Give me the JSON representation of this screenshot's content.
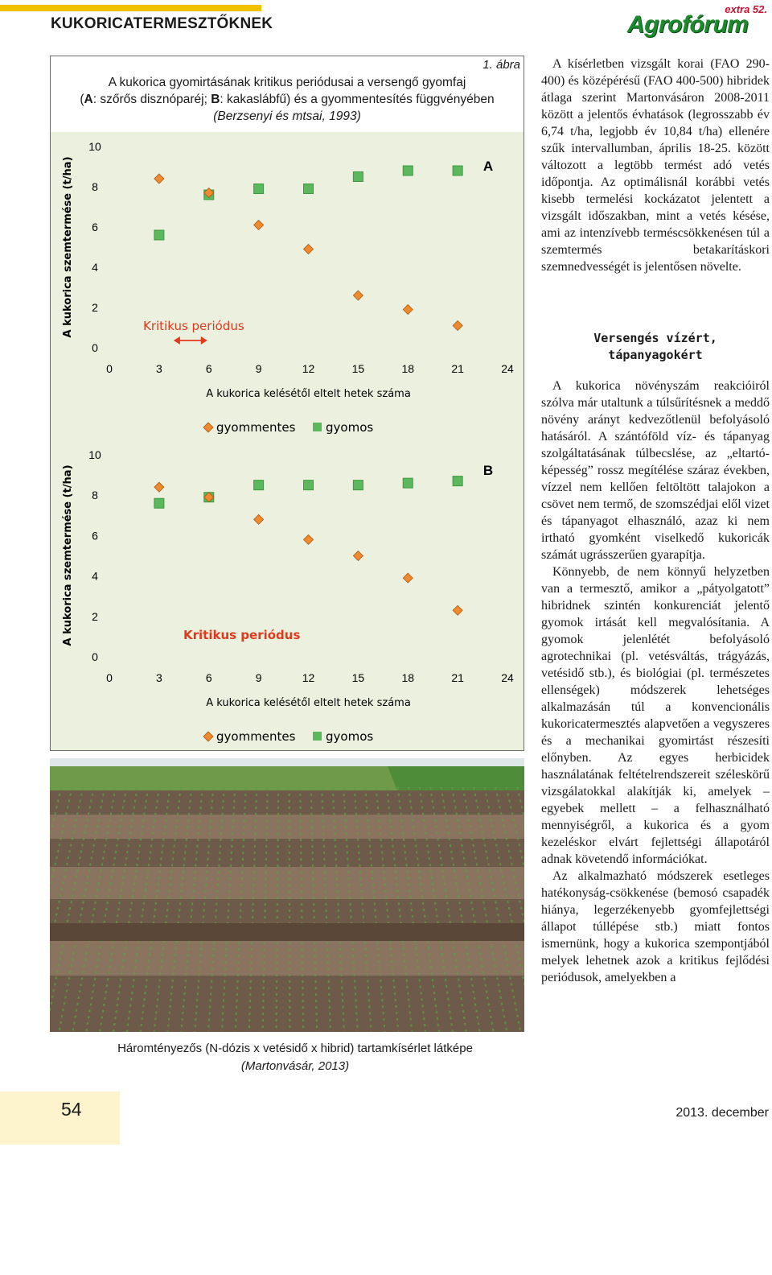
{
  "header": {
    "section_title": "KUKORICATERMESZTŐKNEK",
    "logo_extra": "extra 52.",
    "logo_name": "Agrofórum"
  },
  "figure": {
    "label": "1. ábra",
    "title_line1": "A kukorica gyomirtásának kritikus periódusai a versengő gyomfaj",
    "title_line2_a": "A",
    "title_line2_b": ": szőrős disznóparéj; ",
    "title_line2_c": "B",
    "title_line2_d": ": kakaslábfű) és a gyommentesítés függvényében",
    "title_line3": "(Berzsenyi és mtsai, 1993)",
    "title_paren_open": "(",
    "colors": {
      "gyommentes": "#f08a2e",
      "gyomos": "#5cb85c",
      "line_orange": "#e8842c",
      "line_green": "#2e8b3a",
      "critical": "#e03a1e"
    }
  },
  "chart_data": [
    {
      "type": "scatter",
      "panel_label": "A",
      "ylabel": "A kukorica szemtermése (t/ha)",
      "xlabel": "A kukorica kelésétől eltelt hetek száma",
      "xlim": [
        0,
        24
      ],
      "ylim": [
        0,
        10
      ],
      "x_ticks": [
        "0",
        "3",
        "6",
        "9",
        "12",
        "15",
        "18",
        "21",
        "24"
      ],
      "y_ticks": [
        "0",
        "2",
        "4",
        "6",
        "8",
        "10"
      ],
      "critical_label": "Kritikus periódus",
      "critical_range": [
        3,
        6
      ],
      "legend": [
        "gyommentes",
        "gyomos"
      ],
      "series": [
        {
          "name": "gyommentes",
          "x": [
            3,
            6,
            9,
            12,
            15,
            18,
            21
          ],
          "y": [
            8.4,
            7.7,
            6.1,
            4.9,
            2.6,
            1.9,
            1.1
          ]
        },
        {
          "name": "gyomos",
          "x": [
            3,
            6,
            9,
            12,
            15,
            18,
            21
          ],
          "y": [
            5.6,
            7.6,
            7.9,
            7.9,
            8.5,
            8.8,
            8.8
          ]
        }
      ]
    },
    {
      "type": "scatter",
      "panel_label": "B",
      "ylabel": "A kukorica szemtermése (t/ha)",
      "xlabel": "A kukorica kelésétől eltelt hetek száma",
      "xlim": [
        0,
        24
      ],
      "ylim": [
        0,
        10
      ],
      "x_ticks": [
        "0",
        "3",
        "6",
        "9",
        "12",
        "15",
        "18",
        "21",
        "24"
      ],
      "y_ticks": [
        "0",
        "2",
        "4",
        "6",
        "8",
        "10"
      ],
      "critical_label": "Kritikus periódus",
      "legend": [
        "gyommentes",
        "gyomos"
      ],
      "series": [
        {
          "name": "gyommentes",
          "x": [
            3,
            6,
            9,
            12,
            15,
            18,
            21
          ],
          "y": [
            8.4,
            7.9,
            6.8,
            5.8,
            5.0,
            3.9,
            2.3
          ]
        },
        {
          "name": "gyomos",
          "x": [
            3,
            6,
            9,
            12,
            15,
            18,
            21
          ],
          "y": [
            7.6,
            7.9,
            8.5,
            8.5,
            8.5,
            8.6,
            8.7
          ]
        }
      ]
    }
  ],
  "photo": {
    "caption_line1": "Háromtényezős (N-dózis x vetésidő x hibrid) tartamkísérlet látképe",
    "caption_line2": "(Martonvásár, 2013)",
    "colors": {
      "soil": "#6e5a48",
      "soil_light": "#8a7460",
      "grass": "#4e8c3a",
      "sky": "#dfe8e8"
    }
  },
  "text": {
    "p1": "A kísérletben vizsgált korai (FAO 290-400) és középérésű (FAO 400-500) hibridek átlaga szerint Martonvásáron 2008-2011 között a jelentős évhatások (legrosszabb év 6,74 t/ha, legjobb év 10,84 t/ha) ellenére szűk intervallumban, április 18-25. között változott a legtöbb termést adó vetés időpontja. Az optimálisnál korábbi vetés kisebb termelési kockázatot jelentett a vizsgált időszakban, mint a vetés késése, ami az intenzívebb terméscsökkenésen túl a szemtermés betakarításkori szemnedvességét is jelentősen növelte.",
    "subhead_line1": "Versengés vízért,",
    "subhead_line2": "tápanyagokért",
    "p2": "A kukorica növényszám reakcióiról szólva már utaltunk a túlsűrítésnek a meddő növény arányt kedvezőtlenül befolyásoló hatásáról. A szántóföld víz- és tápanyag szolgáltatásának túlbecslése, az „eltartó-képesség” rossz megítélése száraz években, vízzel nem kellően feltöltött talajokon a csövet nem termő, de szomszédjai elől vizet és tápanyagot elhasználó, azaz ki nem irtható gyomként viselkedő kukoricák számát ugrásszerűen gyarapítja.",
    "p3": "Könnyebb, de nem könnyű helyzetben van a termesztő, amikor a „pátyolgatott” hibridnek szintén konkurenciát jelentő gyomok irtását kell megvalósítania. A gyomok jelenlétét befolyásoló agrotechnikai (pl. vetésváltás, trágyázás, vetésidő stb.), és biológiai (pl. természetes ellenségek) módszerek lehetséges alkalmazásán túl a konvencionális kukoricatermesztés alapvetően a vegyszeres és a mechanikai gyomirtást részesíti előnyben. Az egyes herbicidek használatának feltételrendszereit széleskörű vizsgálatokkal alakítják ki, amelyek – egyebek mellett – a felhasználható mennyiségről, a kukorica és a gyom kezeléskor elvárt fejlettségi állapotáról adnak követendő információkat.",
    "p4": "Az alkalmazható módszerek esetleges hatékonyság-csökkenése (bemosó csapadék hiánya, legerzékenyebb gyomfejlettségi állapot túllépése stb.) miatt fontos ismernünk, hogy a kukorica szempontjából melyek lehetnek azok a kritikus fejlődési periódusok, amelyekben a"
  },
  "footer": {
    "page_number": "54",
    "date": "2013. december"
  }
}
